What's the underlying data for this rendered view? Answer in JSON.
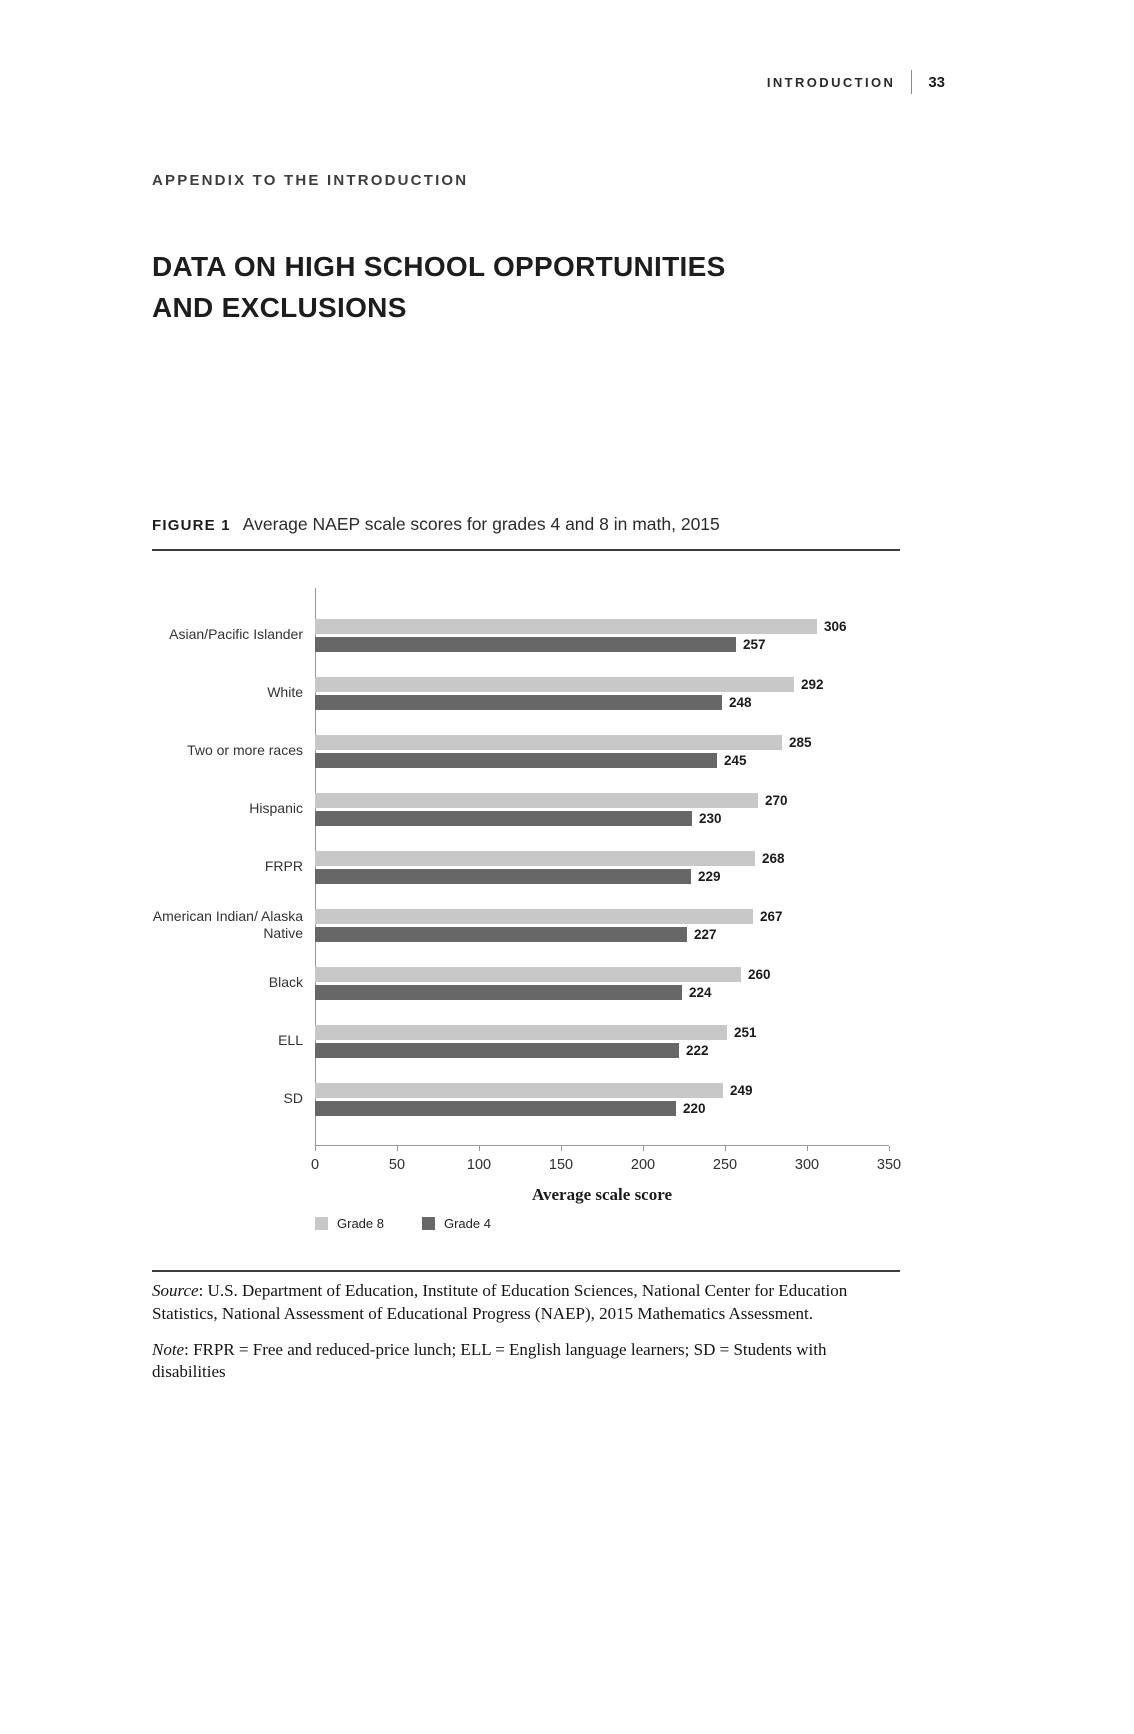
{
  "page": {
    "header": {
      "section": "INTRODUCTION",
      "page_number": "33"
    },
    "kicker": "APPENDIX TO THE INTRODUCTION",
    "title": "DATA ON HIGH SCHOOL OPPORTUNITIES AND EXCLUSIONS"
  },
  "figure": {
    "label": "FIGURE 1",
    "caption": "Average NAEP scale scores for grades 4 and 8 in math, 2015"
  },
  "chart_data": {
    "type": "bar",
    "orientation": "horizontal",
    "categories": [
      "Asian/Pacific Islander",
      "White",
      "Two or more races",
      "Hispanic",
      "FRPR",
      "American Indian/ Alaska Native",
      "Black",
      "ELL",
      "SD"
    ],
    "series": [
      {
        "name": "Grade 8",
        "color": "#c8c8c8",
        "values": [
          306,
          292,
          285,
          270,
          268,
          267,
          260,
          251,
          249
        ]
      },
      {
        "name": "Grade 4",
        "color": "#676767",
        "values": [
          257,
          248,
          245,
          230,
          229,
          227,
          224,
          222,
          220
        ]
      }
    ],
    "xlabel": "Average scale score",
    "xlim": [
      0,
      350
    ],
    "xticks": [
      0,
      50,
      100,
      150,
      200,
      250,
      300,
      350
    ],
    "grid": false,
    "legend_position": "bottom-left"
  },
  "notes": {
    "source_label": "Source",
    "source_text": ": U.S. Department of Education, Institute of Education Sciences, National Center for Education Statistics, National Assessment of Educational Progress (NAEP), 2015 Mathematics Assessment.",
    "note_label": "Note",
    "note_text": ": FRPR = Free and reduced-price lunch; ELL = English language learners; SD = Students with disabilities"
  }
}
